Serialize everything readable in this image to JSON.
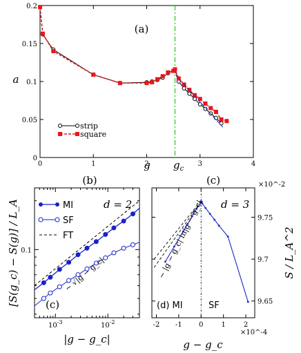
{
  "chart_data": [
    {
      "type": "line",
      "panel_label": "(a)",
      "xlabel": "g",
      "ylabel": "a",
      "xlim": [
        0,
        4
      ],
      "ylim": [
        0,
        0.2
      ],
      "xticks": [
        "0",
        "1",
        "2",
        "3",
        "4"
      ],
      "yticks": [
        "0",
        "0.05",
        "0.1",
        "0.15",
        "0.2"
      ],
      "gc_label": "g_c",
      "gc_value": 2.53,
      "legend_position": "left",
      "series": [
        {
          "name": "strip",
          "color": "#000000",
          "x": [
            0.05,
            0.25,
            1.0,
            1.5,
            2.0,
            2.1,
            2.2,
            2.3,
            2.4,
            2.53,
            2.6,
            2.7,
            2.8,
            2.9,
            3.0,
            3.1,
            3.2,
            3.3,
            3.4
          ],
          "y": [
            0.162,
            0.142,
            0.109,
            0.098,
            0.099,
            0.1,
            0.102,
            0.105,
            0.111,
            0.115,
            0.1,
            0.091,
            0.084,
            0.077,
            0.07,
            0.064,
            0.058,
            0.052,
            0.045
          ]
        },
        {
          "name": "square",
          "color": "#e8171b",
          "x": [
            0.0,
            0.05,
            0.25,
            1.0,
            1.5,
            2.0,
            2.1,
            2.2,
            2.3,
            2.4,
            2.5,
            2.53,
            2.6,
            2.7,
            2.8,
            2.9,
            3.0,
            3.1,
            3.2,
            3.3,
            3.4,
            3.5
          ],
          "y": [
            0.198,
            0.163,
            0.14,
            0.109,
            0.098,
            0.098,
            0.099,
            0.103,
            0.107,
            0.112,
            0.114,
            0.116,
            0.104,
            0.096,
            0.089,
            0.082,
            0.077,
            0.071,
            0.065,
            0.06,
            0.05,
            0.048
          ]
        }
      ]
    },
    {
      "type": "line",
      "panel_label": "(b)",
      "inner_label": "(c)",
      "xlabel": "|g − g_c|",
      "ylabel": "[S(g_c) − S(g)] / L_A",
      "xscale": "log",
      "yscale": "log",
      "xlim": [
        0.0004,
        0.04
      ],
      "ylim": [
        0.038,
        0.24
      ],
      "xticks": [
        "10^-3",
        "10^-2"
      ],
      "yticks": [
        "0.1"
      ],
      "dimension_text": "d = 2",
      "annotation": "~ √|g − g_c|",
      "legend_position": "top-left",
      "series": [
        {
          "name": "MI",
          "color": "#1a23c8",
          "x": [
            0.0004,
            0.0006,
            0.0008,
            0.0012,
            0.0018,
            0.0027,
            0.004,
            0.006,
            0.009,
            0.013,
            0.02,
            0.03,
            0.04
          ],
          "y": [
            0.0565,
            0.0625,
            0.0675,
            0.0755,
            0.0835,
            0.093,
            0.102,
            0.112,
            0.124,
            0.136,
            0.15,
            0.166,
            0.18
          ]
        },
        {
          "name": "SF",
          "color": "#1a23c8",
          "x": [
            0.0004,
            0.0006,
            0.0008,
            0.0012,
            0.0018,
            0.0027,
            0.004,
            0.006,
            0.009,
            0.013,
            0.02,
            0.03,
            0.04
          ],
          "y": [
            0.045,
            0.05,
            0.054,
            0.059,
            0.0645,
            0.07,
            0.076,
            0.0825,
            0.089,
            0.0955,
            0.102,
            0.107,
            0.111
          ]
        },
        {
          "name": "FT",
          "color": "#000000",
          "dashed": true,
          "x": [
            0.0004,
            0.04
          ],
          "y": [
            0.06,
            0.2
          ]
        }
      ]
    },
    {
      "type": "line",
      "panel_label": "(c)",
      "inner_label": "(d) MI",
      "inner_label_right": "SF",
      "xlabel": "g − g_c",
      "ylabel": "S / L_A^2",
      "x_multiplier": "×10^-4",
      "y_multiplier": "×10^-2",
      "xlim": [
        -2.2,
        2.4
      ],
      "ylim": [
        9.63,
        9.785
      ],
      "xticks": [
        "-2",
        "-1",
        "0",
        "1",
        "2"
      ],
      "yticks": [
        "9.65",
        "9.7",
        "9.75"
      ],
      "dimension_text": "d = 3",
      "annotation": "~ |g − g_c| ln|g − g_c|",
      "series": [
        {
          "name": "",
          "color": "#1a23c8",
          "x": [
            -1.6,
            -1.2,
            -0.8,
            -0.6,
            -0.4,
            -0.2,
            0.0,
            0.2,
            0.4,
            0.6,
            0.8,
            1.2,
            2.1
          ],
          "y": [
            9.697,
            9.715,
            9.733,
            9.742,
            9.751,
            9.76,
            9.768,
            9.761,
            9.754,
            9.747,
            9.74,
            9.727,
            9.649
          ]
        }
      ]
    }
  ]
}
